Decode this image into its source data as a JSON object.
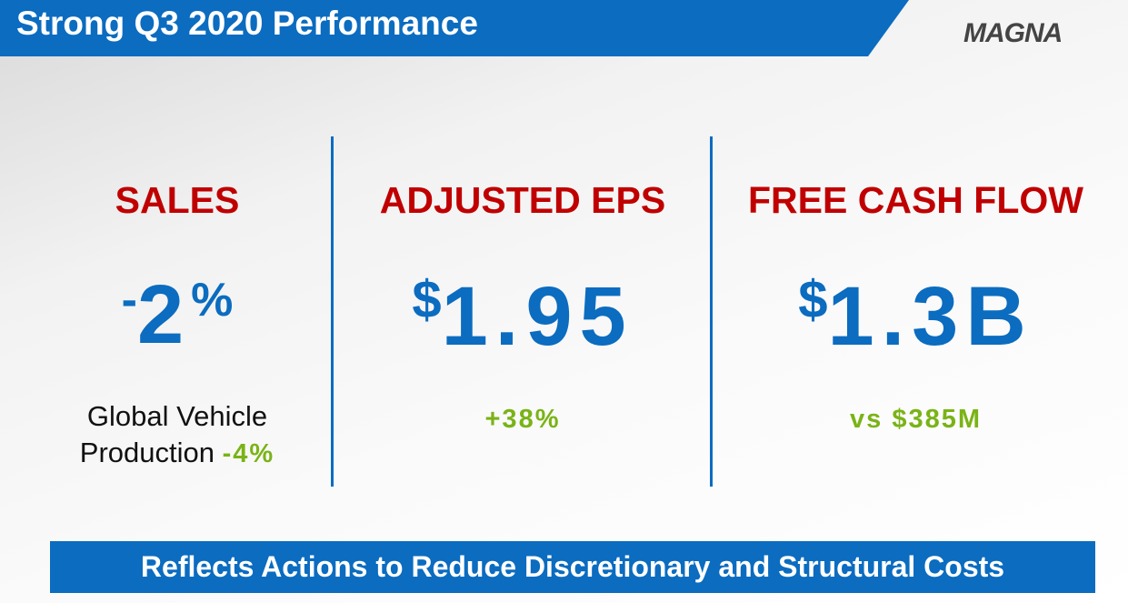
{
  "header": {
    "title": "Strong Q3 2020 Performance",
    "logo": "MAGNA"
  },
  "metrics": [
    {
      "label": "SALES",
      "value": {
        "prefix": "-",
        "main": "2",
        "suffix": "%"
      },
      "note": {
        "text": "Global Vehicle Production",
        "highlight": "-4%"
      }
    },
    {
      "label": "ADJUSTED EPS",
      "value": {
        "prefix": "$",
        "main": "1.95"
      },
      "note": {
        "highlight": "+38%"
      }
    },
    {
      "label": "FREE CASH FLOW",
      "value": {
        "prefix": "$",
        "main": "1.3B"
      },
      "note": {
        "highlight": "vs $385M"
      }
    }
  ],
  "footer": {
    "text": "Reflects Actions to Reduce Discretionary and Structural Costs"
  }
}
